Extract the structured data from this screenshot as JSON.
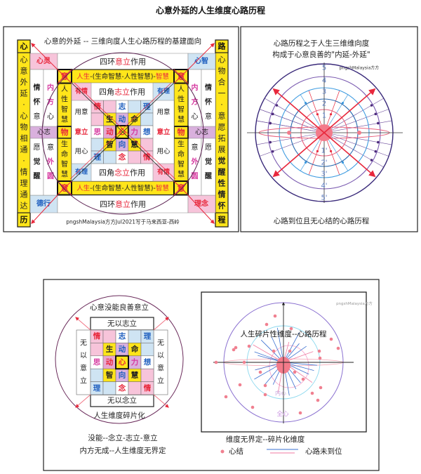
{
  "page_title": "心意外延的人生维度心路历程",
  "colors": {
    "red": "#e8283c",
    "blue": "#1f5fbf",
    "magenta": "#d63aa0",
    "yellow": "#ffe51a",
    "pink": "#f7c4da",
    "lightblue": "#cfe4f3",
    "violet": "#d9b0dd",
    "purple": "#4b2a7a"
  },
  "panel1": {
    "subtitle": "心意的外延 -- 三维向度人生心路历程的基建面向",
    "left_pillar": {
      "top": "心",
      "chars": [
        "心",
        "意",
        "外",
        "延",
        "·",
        "心",
        "物",
        "相",
        "通",
        "·",
        "情",
        "理",
        "通",
        "达"
      ],
      "bottom": "历"
    },
    "right_pillar": {
      "top": "路",
      "chars": [
        {
          "t": "心"
        },
        {
          "t": "物"
        },
        {
          "t": "合"
        },
        {
          "t": "一"
        },
        {
          "t": "·"
        },
        {
          "t": "意"
        },
        {
          "t": "愿"
        },
        {
          "t": "拓"
        },
        {
          "t": "展"
        },
        {
          "t": "觉",
          "b": 1
        },
        {
          "t": "醒",
          "b": 1
        },
        {
          "t": "性",
          "b": 1
        },
        {
          "t": "情",
          "b": 1
        },
        {
          "t": "怀",
          "b": 1
        }
      ],
      "bottom": "程"
    },
    "top_row": {
      "left": "心灵",
      "center": [
        {
          "t": "四环"
        },
        {
          "t": "意立",
          "c": "#e8283c"
        },
        {
          "t": "作用"
        }
      ],
      "right": "心智"
    },
    "bottom_row": {
      "left": "德行",
      "center": [
        {
          "t": "四环"
        },
        {
          "t": "意立",
          "c": "#e8283c"
        },
        {
          "t": "作用"
        }
      ],
      "right": "理念"
    },
    "band": [
      {
        "t": "人生",
        "c": "#e8283c"
      },
      {
        "t": "-(生命智慧-人性智慧)-"
      },
      {
        "t": "智慧",
        "c": "#e8283c"
      }
    ],
    "corner_char": "意",
    "upper_wisdom": [
      "人",
      "性",
      "智",
      "慧"
    ],
    "lower_wisdom": [
      "生",
      "命",
      "智",
      "慧"
    ],
    "wu": "物",
    "band_label": "心志",
    "left_cols": {
      "a_top": [
        {
          "t": "情",
          "b": 1
        },
        {
          "t": "怀",
          "b": 1
        },
        {
          "t": "意"
        }
      ],
      "a_bottom": [
        {
          "t": "愿"
        },
        {
          "t": "觉",
          "b": 1
        },
        {
          "t": "醒",
          "b": 1
        }
      ],
      "b_top": [
        {
          "t": "内",
          "c": "#d63aa0",
          "b": 1
        },
        {
          "t": "方",
          "c": "#d63aa0",
          "b": 1
        },
        {
          "t": "心"
        }
      ],
      "b_bottom": [
        {
          "t": "意"
        },
        {
          "t": "外",
          "c": "#d63aa0",
          "b": 1
        },
        {
          "t": "圆",
          "c": "#d63aa0",
          "b": 1
        }
      ]
    },
    "right_cols": {
      "a_top": [
        {
          "t": "内",
          "c": "#d63aa0",
          "b": 1
        },
        {
          "t": "方",
          "c": "#d63aa0",
          "b": 1
        },
        {
          "t": "心"
        }
      ],
      "a_bottom": [
        {
          "t": "意"
        },
        {
          "t": "外",
          "c": "#d63aa0",
          "b": 1
        },
        {
          "t": "圆",
          "c": "#d63aa0",
          "b": 1
        }
      ],
      "b_top": [
        {
          "t": "情",
          "b": 1
        },
        {
          "t": "怀",
          "b": 1
        },
        {
          "t": "意"
        }
      ],
      "b_bottom": [
        {
          "t": "愿"
        },
        {
          "t": "觉",
          "b": 1
        },
        {
          "t": "醒",
          "b": 1
        }
      ]
    },
    "inner_side": {
      "top": "用意",
      "mid": "意立",
      "bottom": "用心"
    },
    "corner_top": [
      "有情",
      "有理"
    ],
    "corner_bottom": [
      "有理",
      "有情"
    ],
    "inner_top": [
      {
        "t": "四角"
      },
      {
        "t": "志立",
        "c": "#e8283c"
      },
      {
        "t": "作用"
      }
    ],
    "inner_bottom": [
      {
        "t": "四角"
      },
      {
        "t": "念立",
        "c": "#e8283c"
      },
      {
        "t": "作用"
      }
    ],
    "watermark": "pngshMalaysia方方Jul2021写于马来西亚-西岭"
  },
  "grid": [
    [
      {
        "t": "情",
        "c": "#e8283c",
        "bg": "#f7c4da"
      },
      {
        "t": "",
        "bg": "#f7c4da"
      },
      {
        "t": "志",
        "c": "#1f5fbf",
        "bg": "#ffffff"
      },
      {
        "t": "",
        "bg": "#cfe4f3"
      },
      {
        "t": "理",
        "c": "#1f5fbf",
        "bg": "#cfe4f3"
      }
    ],
    [
      {
        "t": "",
        "bg": "#f7c4da"
      },
      {
        "t": "生",
        "c": "#222222",
        "bg": "#ffe51a"
      },
      {
        "t": "动",
        "c": "#1f5fbf",
        "bg": "#d9b0dd"
      },
      {
        "t": "命",
        "c": "#222222",
        "bg": "#ffe51a"
      },
      {
        "t": "",
        "bg": "#cfe4f3"
      }
    ],
    [
      {
        "t": "思",
        "c": "#d63aa0",
        "bg": "#ffffff"
      },
      {
        "t": "动",
        "c": "#e8283c",
        "bg": "#e8a6d0"
      },
      {
        "t": "心",
        "c": "#e8283c",
        "bg": "#ffe51a"
      },
      {
        "t": "力",
        "c": "#d63aa0",
        "bg": "#d9b0dd"
      },
      {
        "t": "想",
        "c": "#1f5fbf",
        "bg": "#ffffff"
      }
    ],
    [
      {
        "t": "",
        "bg": "#cfe4f3"
      },
      {
        "t": "智",
        "c": "#222222",
        "bg": "#ffe51a"
      },
      {
        "t": "向",
        "c": "#1f5fbf",
        "bg": "#d9b0dd"
      },
      {
        "t": "慧",
        "c": "#222222",
        "bg": "#ffe51a"
      },
      {
        "t": "",
        "bg": "#f7c4da"
      }
    ],
    [
      {
        "t": "理",
        "c": "#1f5fbf",
        "bg": "#cfe4f3"
      },
      {
        "t": "",
        "bg": "#cfe4f3"
      },
      {
        "t": "念",
        "c": "#e8283c",
        "bg": "#ffffff"
      },
      {
        "t": "",
        "bg": "#f7c4da"
      },
      {
        "t": "情",
        "c": "#e8283c",
        "bg": "#f7c4da"
      }
    ]
  ],
  "panel2": {
    "title_line1": "心路历程之于人生三维维向度",
    "title_line2": "构成于心意良善的\"内延-外延\"",
    "watermark": "pngshMalaysia方方",
    "upper_labels": [
      "5",
      "4",
      "3",
      "2",
      "1"
    ],
    "lower_labels": [
      "1'",
      "2'",
      "3'",
      "4'",
      "5'"
    ],
    "caption": "心路到位且无心结的心路历程"
  },
  "panel3": {
    "title": "心意没能良善意立",
    "top_box": "无以志立",
    "side_box": [
      "无",
      "以",
      "意",
      "立"
    ],
    "bottom_box": "无以念立",
    "circle_caption": "人生维度碎片化",
    "caption_line1": "没能--念立-志立-意立",
    "caption_line2": "内方无成--人生维度无界定"
  },
  "panel4": {
    "watermark": "pngshMalaysia方方",
    "title": "人生碎片性维度--心路历程",
    "inner_label": "内心",
    "outer_label": "全心",
    "caption": "维度无界定--碎片化维度",
    "legend": [
      {
        "label": "心结",
        "icon": "red-dot"
      },
      {
        "label": "心路未到位",
        "icon": "blue-pink-lines"
      }
    ]
  }
}
